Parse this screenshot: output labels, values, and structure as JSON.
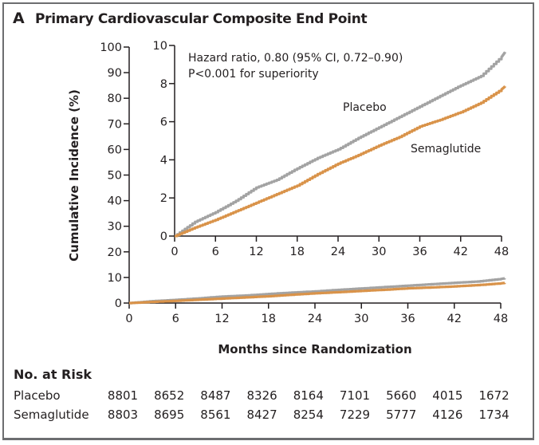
{
  "figure": {
    "panel_letter": "A",
    "title": "Primary Cardiovascular Composite End Point"
  },
  "chart_data": {
    "type": "line",
    "title": "Primary Cardiovascular Composite End Point",
    "xlabel": "Months since Randomization",
    "ylabel": "Cumulative Incidence (%)",
    "main_axes": {
      "xlim": [
        0,
        48
      ],
      "ylim": [
        0,
        100
      ],
      "xticks": [
        0,
        6,
        12,
        18,
        24,
        30,
        36,
        42,
        48
      ],
      "yticks": [
        0,
        10,
        20,
        30,
        40,
        50,
        60,
        70,
        80,
        90,
        100
      ]
    },
    "inset_axes": {
      "xlim": [
        0,
        48
      ],
      "ylim": [
        0,
        10
      ],
      "xticks": [
        0,
        6,
        12,
        18,
        24,
        30,
        36,
        42,
        48
      ],
      "yticks": [
        0,
        2,
        4,
        6,
        8,
        10
      ]
    },
    "x": [
      0,
      3,
      6,
      9,
      12,
      15,
      18,
      21,
      24,
      27,
      30,
      33,
      36,
      39,
      42,
      45,
      48,
      48.5
    ],
    "series": [
      {
        "name": "Placebo",
        "color": "#a3a3a3",
        "values": [
          0,
          0.75,
          1.25,
          1.85,
          2.55,
          2.95,
          3.55,
          4.1,
          4.55,
          5.15,
          5.7,
          6.25,
          6.8,
          7.35,
          7.9,
          8.4,
          9.4,
          9.65
        ]
      },
      {
        "name": "Semaglutide",
        "color": "#d9934a",
        "values": [
          0,
          0.45,
          0.85,
          1.3,
          1.75,
          2.2,
          2.65,
          3.25,
          3.8,
          4.25,
          4.75,
          5.2,
          5.75,
          6.1,
          6.5,
          7.0,
          7.7,
          7.85
        ]
      }
    ],
    "annotations": [
      "Hazard ratio, 0.80 (95% CI, 0.72–0.90)",
      "P<0.001 for superiority"
    ],
    "legend": "inline labels"
  },
  "risk_table": {
    "title": "No. at Risk",
    "rows": [
      {
        "label": "Placebo",
        "values": [
          "8801",
          "8652",
          "8487",
          "8326",
          "8164",
          "7101",
          "5660",
          "4015",
          "1672"
        ]
      },
      {
        "label": "Semaglutide",
        "values": [
          "8803",
          "8695",
          "8561",
          "8427",
          "8254",
          "7229",
          "5777",
          "4126",
          "1734"
        ]
      }
    ]
  }
}
